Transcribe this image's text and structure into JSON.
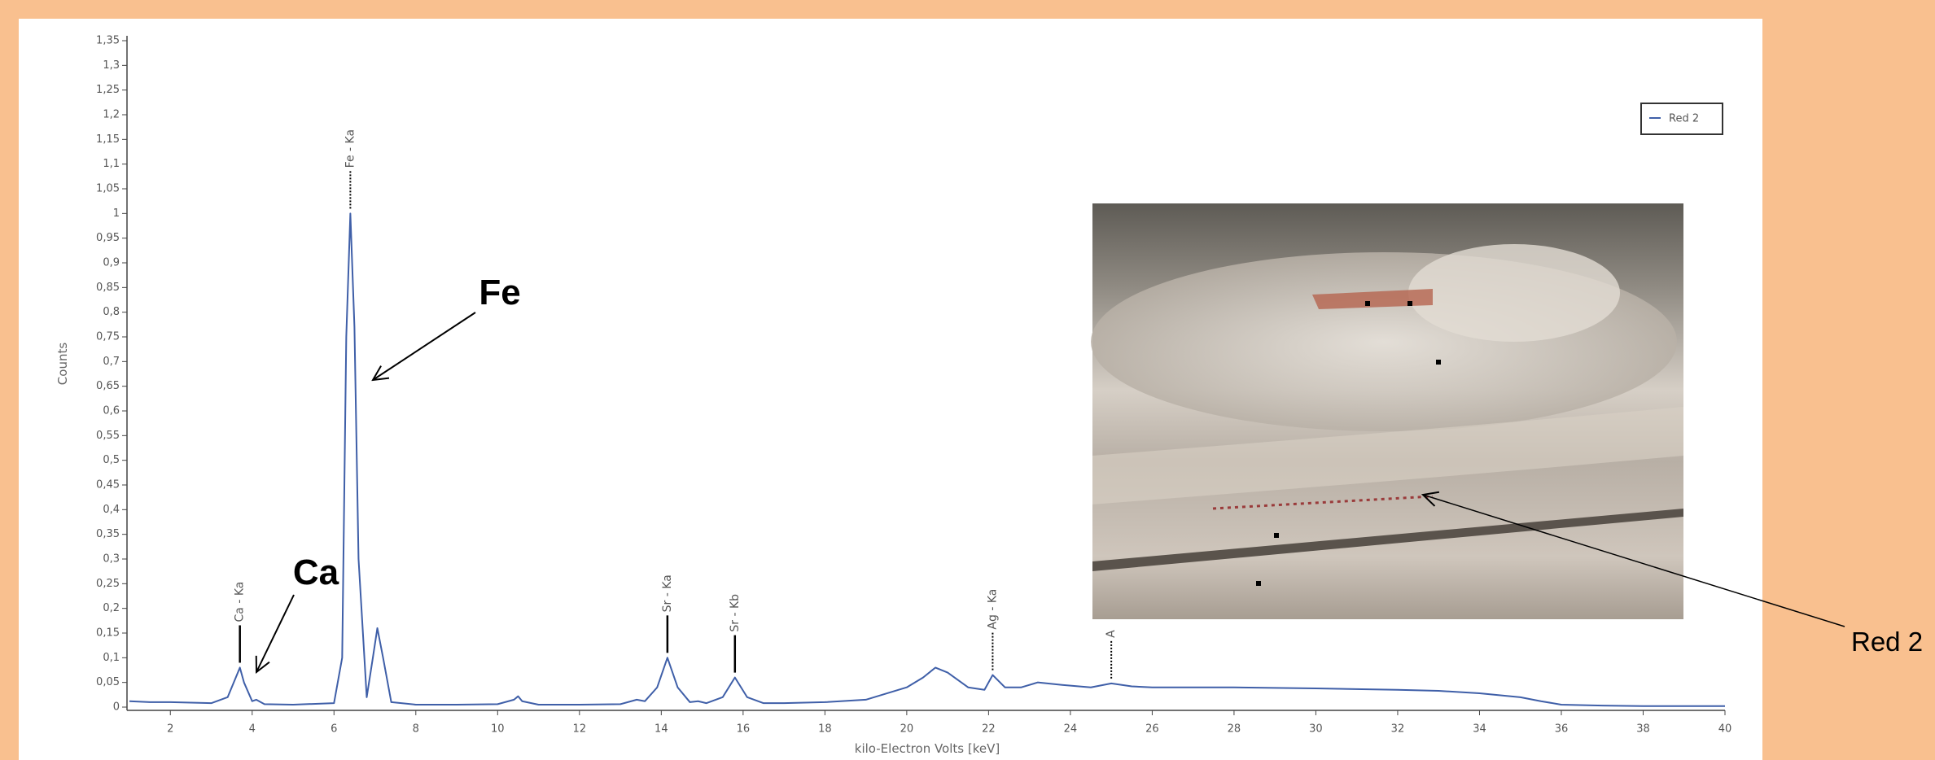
{
  "chart_data": {
    "type": "line",
    "ylabel": "Counts",
    "xlabel": "kilo-Electron Volts [keV]",
    "xlim": [
      1,
      40
    ],
    "xticks": [
      2,
      4,
      6,
      8,
      10,
      12,
      14,
      16,
      18,
      20,
      22,
      24,
      26,
      28,
      30,
      32,
      34,
      36,
      38,
      40
    ],
    "ylim": [
      0,
      1.35
    ],
    "yticks": [
      0,
      {
        "value": 0.05,
        "label": "0,05"
      },
      {
        "value": 0.1,
        "label": "0,1"
      },
      {
        "value": 0.15,
        "label": "0,15"
      },
      {
        "value": 0.2,
        "label": "0,2"
      },
      {
        "value": 0.25,
        "label": "0,25"
      },
      {
        "value": 0.3,
        "label": "0,3"
      },
      {
        "value": 0.35,
        "label": "0,35"
      },
      {
        "value": 0.4,
        "label": "0,4"
      },
      {
        "value": 0.45,
        "label": "0,45"
      },
      {
        "value": 0.5,
        "label": "0,5"
      },
      {
        "value": 0.55,
        "label": "0,55"
      },
      {
        "value": 0.6,
        "label": "0,6"
      },
      {
        "value": 0.65,
        "label": "0,65"
      },
      {
        "value": 0.7,
        "label": "0,7"
      },
      {
        "value": 0.75,
        "label": "0,75"
      },
      {
        "value": 0.8,
        "label": "0,8"
      },
      {
        "value": 0.85,
        "label": "0,85"
      },
      {
        "value": 0.9,
        "label": "0,9"
      },
      {
        "value": 0.95,
        "label": "0,95"
      },
      1,
      {
        "value": 1.05,
        "label": "1,05"
      },
      {
        "value": 1.1,
        "label": "1,1"
      },
      {
        "value": 1.15,
        "label": "1,15"
      },
      {
        "value": 1.2,
        "label": "1,2"
      },
      {
        "value": 1.25,
        "label": "1,25"
      },
      {
        "value": 1.3,
        "label": "1,3"
      },
      {
        "value": 1.35,
        "label": "1,35"
      }
    ],
    "x": [
      1,
      1.5,
      2,
      2.5,
      3,
      3.4,
      3.6,
      3.7,
      3.8,
      4.0,
      4.1,
      4.3,
      5,
      6,
      6.2,
      6.3,
      6.4,
      6.5,
      6.6,
      6.8,
      6.95,
      7.06,
      7.2,
      7.4,
      8,
      9,
      10,
      10.4,
      10.5,
      10.6,
      11,
      12,
      13,
      13.4,
      13.6,
      13.9,
      14.15,
      14.4,
      14.7,
      14.9,
      15.1,
      15.5,
      15.8,
      16.1,
      16.5,
      17,
      18,
      19,
      20,
      20.4,
      20.7,
      21,
      21.5,
      21.9,
      22.1,
      22.4,
      22.8,
      23.2,
      23.8,
      24.5,
      25,
      25.5,
      26,
      28,
      30,
      32,
      33,
      34,
      35,
      35.5,
      36,
      37,
      38,
      40
    ],
    "series": [
      {
        "name": "Red 2",
        "color": "#3f5fa8",
        "values": [
          0.012,
          0.01,
          0.01,
          0.009,
          0.008,
          0.02,
          0.06,
          0.08,
          0.05,
          0.012,
          0.015,
          0.006,
          0.005,
          0.008,
          0.1,
          0.75,
          1,
          0.77,
          0.3,
          0.02,
          0.1,
          0.16,
          0.1,
          0.01,
          0.005,
          0.005,
          0.006,
          0.015,
          0.022,
          0.012,
          0.005,
          0.005,
          0.006,
          0.015,
          0.012,
          0.04,
          0.1,
          0.04,
          0.01,
          0.012,
          0.008,
          0.02,
          0.06,
          0.02,
          0.008,
          0.008,
          0.01,
          0.015,
          0.04,
          0.06,
          0.08,
          0.07,
          0.04,
          0.035,
          0.065,
          0.04,
          0.04,
          0.05,
          0.045,
          0.04,
          0.048,
          0.042,
          0.04,
          0.04,
          0.038,
          0.035,
          0.033,
          0.028,
          0.02,
          0.012,
          0.005,
          0.003,
          0.002,
          0.002
        ]
      }
    ],
    "peak_markers": [
      {
        "label": "Ca - Ka",
        "x": 3.7,
        "y": 0.08,
        "style": "solid"
      },
      {
        "label": "Fe - Ka",
        "x": 6.4,
        "y": 1,
        "style": "dotted"
      },
      {
        "label": "Sr - Ka",
        "x": 14.15,
        "y": 0.1,
        "style": "solid"
      },
      {
        "label": "Sr - Kb",
        "x": 15.8,
        "y": 0.06,
        "style": "solid"
      },
      {
        "label": "Ag - Ka",
        "x": 22.1,
        "y": 0.065,
        "style": "dotted"
      },
      {
        "label": "A",
        "x": 25,
        "y": 0.048,
        "style": "dotted"
      }
    ],
    "annotations": [
      "Fe",
      "Ca",
      "Red 2"
    ]
  }
}
